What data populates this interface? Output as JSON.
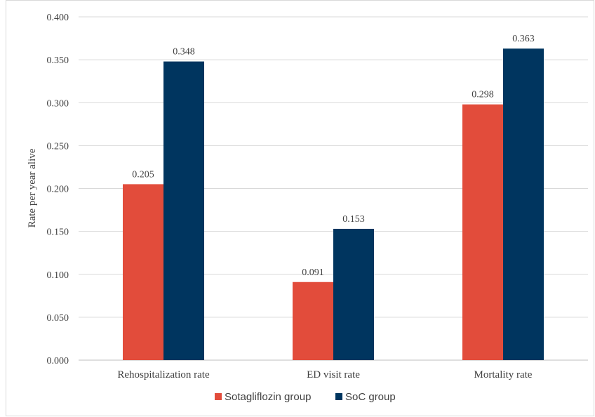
{
  "chart_data": {
    "type": "bar",
    "title": "",
    "xlabel": "",
    "ylabel": "Rate per year alive",
    "categories": [
      "Rehospitalization rate",
      "ED visit rate",
      "Mortality rate"
    ],
    "series": [
      {
        "name": "Sotagliflozin group",
        "values": [
          0.205,
          0.091,
          0.298
        ],
        "color": "#e24c3b"
      },
      {
        "name": "SoC group",
        "values": [
          0.348,
          0.153,
          0.363
        ],
        "color": "#00355f"
      }
    ],
    "ylim": [
      0,
      0.4
    ],
    "yticks": [
      "0.000",
      "0.050",
      "0.100",
      "0.150",
      "0.200",
      "0.250",
      "0.300",
      "0.350",
      "0.400"
    ],
    "value_format_decimals": 3,
    "grid": true,
    "legend_position": "bottom"
  }
}
